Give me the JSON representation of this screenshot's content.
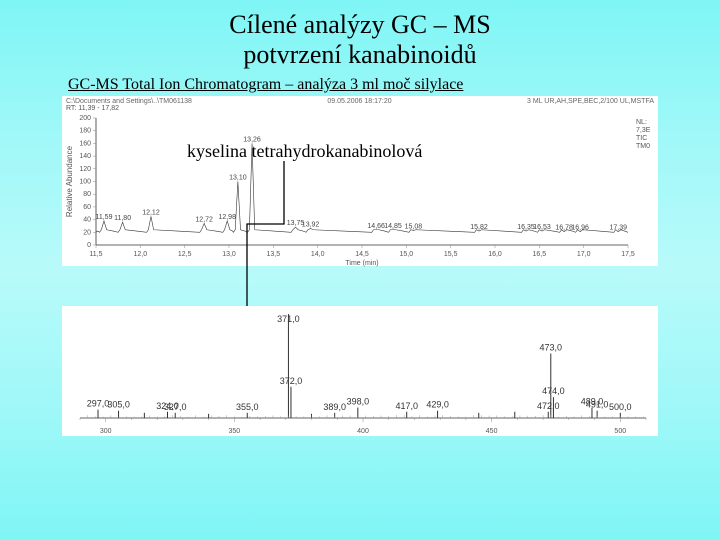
{
  "title_line1": "Cílené analýzy GC – MS",
  "title_line2": "potvrzení kanabinoidů",
  "subtitle": "GC-MS Total Ion Chromatogram – analýza 3 ml moč silylace",
  "annotation": "kyselina tetrahydrokanabinolová",
  "chrom": {
    "header_left": "C:\\Documents and Settings\\..\\TM061138",
    "header_mid": "09.05.2006 18:17:20",
    "header_right": "3 ML UR,AH,SPE,BEC,2/100 UL,MSTFA",
    "header_side1": "NL:",
    "header_side2": "7,3E",
    "header_side3": "TIC",
    "header_side4": "TM0",
    "rt_range": "RT: 11,39 - 17,82",
    "ylabel": "Relative Abundance",
    "xlabel": "Time (min)",
    "x_min": 11.5,
    "x_max": 17.5,
    "x_step": 0.5,
    "y_min": 0,
    "y_max": 200,
    "y_step": 20,
    "background_color": "#ffffff",
    "axis_color": "#333333",
    "text_color": "#555555",
    "peaks": [
      {
        "rt": 11.59,
        "h": 38,
        "label": "11,59"
      },
      {
        "rt": 11.8,
        "h": 36,
        "label": "11,80"
      },
      {
        "rt": 12.12,
        "h": 45,
        "label": "12,12"
      },
      {
        "rt": 12.72,
        "h": 34,
        "label": "12,72"
      },
      {
        "rt": 12.98,
        "h": 38,
        "label": "12,98"
      },
      {
        "rt": 13.1,
        "h": 100,
        "label": "13,10"
      },
      {
        "rt": 13.26,
        "h": 160,
        "label": "13,26"
      },
      {
        "rt": 13.75,
        "h": 28,
        "label": "13,75"
      },
      {
        "rt": 13.92,
        "h": 26,
        "label": "13,92"
      },
      {
        "rt": 14.66,
        "h": 24,
        "label": "14,66"
      },
      {
        "rt": 14.85,
        "h": 24,
        "label": "14,85"
      },
      {
        "rt": 15.08,
        "h": 23,
        "label": "15,08"
      },
      {
        "rt": 15.82,
        "h": 22,
        "label": "15,82"
      },
      {
        "rt": 16.35,
        "h": 22,
        "label": "16,35"
      },
      {
        "rt": 16.53,
        "h": 22,
        "label": "16,53"
      },
      {
        "rt": 16.78,
        "h": 21,
        "label": "16,78"
      },
      {
        "rt": 16.96,
        "h": 21,
        "label": "16,96"
      },
      {
        "rt": 17.39,
        "h": 21,
        "label": "17,39"
      }
    ],
    "baseline": 20
  },
  "ms": {
    "x_min": 290,
    "x_max": 510,
    "x_step": 10,
    "x_major_step": 50,
    "background_color": "#ffffff",
    "bar_color": "#1a1a1a",
    "text_color": "#333333",
    "peaks": [
      {
        "mz": 297.0,
        "i": 8,
        "label": "297,0"
      },
      {
        "mz": 305.0,
        "i": 7,
        "label": "305,0"
      },
      {
        "mz": 315.0,
        "i": 5,
        "label": ""
      },
      {
        "mz": 324.0,
        "i": 6,
        "label": "324,0"
      },
      {
        "mz": 327.0,
        "i": 5,
        "label": "327,0"
      },
      {
        "mz": 340.0,
        "i": 4,
        "label": ""
      },
      {
        "mz": 355.0,
        "i": 5,
        "label": "355,0"
      },
      {
        "mz": 371.0,
        "i": 100,
        "label": "371,0"
      },
      {
        "mz": 372.0,
        "i": 30,
        "label": "372,0"
      },
      {
        "mz": 380.0,
        "i": 4,
        "label": ""
      },
      {
        "mz": 389.0,
        "i": 5,
        "label": "389,0"
      },
      {
        "mz": 398.0,
        "i": 10,
        "label": "398,0"
      },
      {
        "mz": 417.0,
        "i": 6,
        "label": "417,0"
      },
      {
        "mz": 429.0,
        "i": 7,
        "label": "429,0"
      },
      {
        "mz": 445.0,
        "i": 5,
        "label": ""
      },
      {
        "mz": 459.0,
        "i": 6,
        "label": ""
      },
      {
        "mz": 472.0,
        "i": 6,
        "label": "472,0"
      },
      {
        "mz": 473.0,
        "i": 62,
        "label": "473,0"
      },
      {
        "mz": 474.0,
        "i": 20,
        "label": "474,0"
      },
      {
        "mz": 489.0,
        "i": 10,
        "label": "489,0"
      },
      {
        "mz": 491.0,
        "i": 7,
        "label": "491,0"
      },
      {
        "mz": 500.0,
        "i": 5,
        "label": "500,0"
      }
    ]
  }
}
